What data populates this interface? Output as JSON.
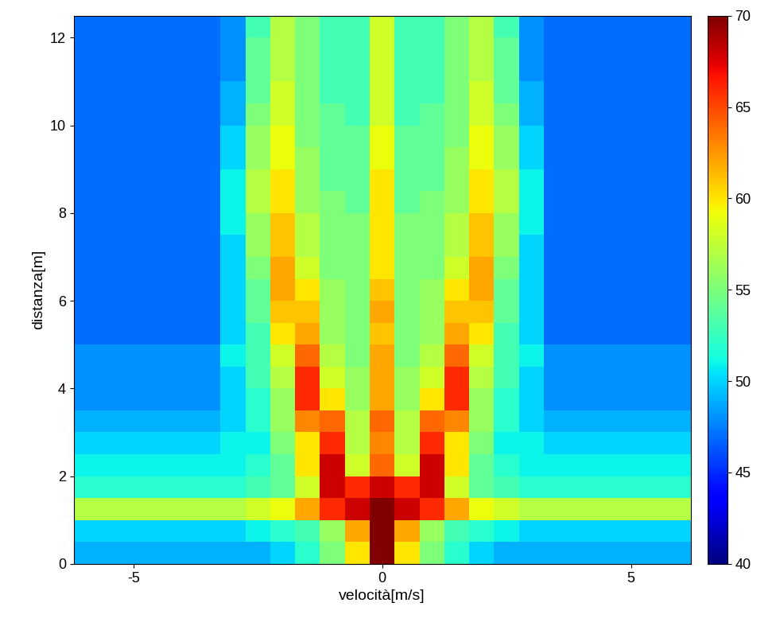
{
  "chart_data": {
    "type": "heatmap",
    "xlabel": "velocità[m/s]",
    "ylabel": "distanza[m]",
    "color": "jet",
    "x": [
      -6,
      -5.5,
      -5,
      -4.5,
      -4,
      -3.5,
      -3,
      -2.5,
      -2,
      -1.5,
      -1,
      -0.5,
      0,
      0.5,
      1,
      1.5,
      2,
      2.5,
      3,
      3.5,
      4,
      4.5,
      5,
      5.5,
      6
    ],
    "y": [
      0.25,
      0.75,
      1.25,
      1.75,
      2.25,
      2.75,
      3.25,
      3.75,
      4.25,
      4.75,
      5.25,
      5.75,
      6.25,
      6.75,
      7.25,
      7.75,
      8.25,
      8.75,
      9.25,
      9.75,
      10.25,
      10.75,
      11.25,
      11.75,
      12.25
    ],
    "values": [
      [
        49,
        49,
        49,
        49,
        49,
        49,
        49,
        49,
        50,
        52,
        55,
        60,
        70,
        60,
        55,
        52,
        50,
        49,
        49,
        49,
        49,
        49,
        49,
        49,
        49
      ],
      [
        50,
        50,
        50,
        50,
        50,
        50,
        50,
        51,
        52,
        53,
        56,
        62,
        70,
        62,
        56,
        53,
        52,
        51,
        50,
        50,
        50,
        50,
        50,
        50,
        50
      ],
      [
        57,
        57,
        57,
        57,
        57,
        57,
        57,
        58,
        59,
        62,
        66,
        68,
        70,
        68,
        66,
        62,
        59,
        58,
        57,
        57,
        57,
        57,
        57,
        57,
        57
      ],
      [
        52,
        52,
        52,
        52,
        52,
        52,
        52,
        53,
        54,
        58,
        68,
        66,
        68,
        66,
        68,
        58,
        54,
        53,
        52,
        52,
        52,
        52,
        52,
        52,
        52
      ],
      [
        51,
        51,
        51,
        51,
        51,
        51,
        51,
        52,
        54,
        60,
        68,
        58,
        64,
        58,
        68,
        60,
        54,
        52,
        51,
        51,
        51,
        51,
        51,
        51,
        51
      ],
      [
        50,
        50,
        50,
        50,
        50,
        50,
        51,
        51,
        55,
        60,
        66,
        57,
        63,
        57,
        66,
        60,
        55,
        51,
        51,
        50,
        50,
        50,
        50,
        50,
        50
      ],
      [
        49,
        49,
        49,
        49,
        49,
        49,
        50,
        52,
        56,
        63,
        64,
        57,
        64,
        57,
        64,
        63,
        56,
        52,
        50,
        49,
        49,
        49,
        49,
        49,
        49
      ],
      [
        48,
        48,
        48,
        48,
        48,
        48,
        50,
        52,
        56,
        66,
        60,
        56,
        62,
        56,
        60,
        66,
        56,
        52,
        50,
        48,
        48,
        48,
        48,
        48,
        48
      ],
      [
        48,
        48,
        48,
        48,
        48,
        48,
        50,
        53,
        57,
        66,
        58,
        56,
        62,
        56,
        58,
        66,
        57,
        53,
        50,
        48,
        48,
        48,
        48,
        48,
        48
      ],
      [
        48,
        48,
        48,
        48,
        48,
        48,
        51,
        53,
        58,
        64,
        57,
        55,
        62,
        55,
        57,
        64,
        58,
        53,
        51,
        48,
        48,
        48,
        48,
        48,
        48
      ],
      [
        47,
        47,
        47,
        47,
        47,
        47,
        50,
        53,
        60,
        62,
        56,
        55,
        61,
        55,
        56,
        62,
        60,
        53,
        50,
        47,
        47,
        47,
        47,
        47,
        47
      ],
      [
        47,
        47,
        47,
        47,
        47,
        47,
        50,
        54,
        61,
        61,
        56,
        55,
        62,
        55,
        56,
        61,
        61,
        54,
        50,
        47,
        47,
        47,
        47,
        47,
        47
      ],
      [
        47,
        47,
        47,
        47,
        47,
        47,
        50,
        54,
        62,
        60,
        56,
        55,
        61,
        55,
        56,
        60,
        62,
        54,
        50,
        47,
        47,
        47,
        47,
        47,
        47
      ],
      [
        47,
        47,
        47,
        47,
        47,
        47,
        50,
        55,
        62,
        58,
        55,
        55,
        60,
        55,
        55,
        58,
        62,
        55,
        50,
        47,
        47,
        47,
        47,
        47,
        47
      ],
      [
        47,
        47,
        47,
        47,
        47,
        47,
        50,
        56,
        61,
        57,
        55,
        55,
        60,
        55,
        55,
        57,
        61,
        56,
        50,
        47,
        47,
        47,
        47,
        47,
        47
      ],
      [
        47,
        47,
        47,
        47,
        47,
        47,
        51,
        56,
        61,
        57,
        55,
        55,
        60,
        55,
        55,
        57,
        61,
        56,
        51,
        47,
        47,
        47,
        47,
        47,
        47
      ],
      [
        47,
        47,
        47,
        47,
        47,
        47,
        51,
        57,
        60,
        56,
        55,
        54,
        60,
        54,
        55,
        56,
        60,
        57,
        51,
        47,
        47,
        47,
        47,
        47,
        47
      ],
      [
        47,
        47,
        47,
        47,
        47,
        47,
        51,
        57,
        60,
        56,
        54,
        54,
        60,
        54,
        54,
        56,
        60,
        57,
        51,
        47,
        47,
        47,
        47,
        47,
        47
      ],
      [
        47,
        47,
        47,
        47,
        47,
        47,
        50,
        56,
        59,
        56,
        54,
        54,
        59,
        54,
        54,
        56,
        59,
        56,
        50,
        47,
        47,
        47,
        47,
        47,
        47
      ],
      [
        47,
        47,
        47,
        47,
        47,
        47,
        50,
        56,
        59,
        55,
        54,
        54,
        59,
        54,
        54,
        55,
        59,
        56,
        50,
        47,
        47,
        47,
        47,
        47,
        47
      ],
      [
        47,
        47,
        47,
        47,
        47,
        47,
        49,
        55,
        58,
        55,
        54,
        53,
        58,
        53,
        54,
        55,
        58,
        55,
        49,
        47,
        47,
        47,
        47,
        47,
        47
      ],
      [
        47,
        47,
        47,
        47,
        47,
        47,
        49,
        54,
        58,
        55,
        53,
        53,
        58,
        53,
        53,
        55,
        58,
        54,
        49,
        47,
        47,
        47,
        47,
        47,
        47
      ],
      [
        47,
        47,
        47,
        47,
        47,
        47,
        48,
        54,
        57,
        55,
        53,
        53,
        58,
        53,
        53,
        55,
        57,
        54,
        48,
        47,
        47,
        47,
        47,
        47,
        47
      ],
      [
        47,
        47,
        47,
        47,
        47,
        47,
        48,
        54,
        57,
        55,
        53,
        53,
        58,
        53,
        53,
        55,
        57,
        54,
        48,
        47,
        47,
        47,
        47,
        47,
        47
      ],
      [
        47,
        47,
        47,
        47,
        47,
        47,
        48,
        53,
        57,
        55,
        53,
        53,
        58,
        53,
        53,
        55,
        57,
        53,
        48,
        47,
        47,
        47,
        47,
        47,
        47
      ]
    ],
    "xlim": [
      -6.2,
      6.2
    ],
    "xticks": [
      -5,
      0,
      5
    ],
    "ylim": [
      0,
      12.5
    ],
    "yticks": [
      0,
      2,
      4,
      6,
      8,
      10,
      12
    ],
    "colorbar": {
      "lim": [
        40,
        70
      ],
      "ticks": [
        40,
        45,
        50,
        55,
        60,
        65,
        70
      ]
    }
  }
}
